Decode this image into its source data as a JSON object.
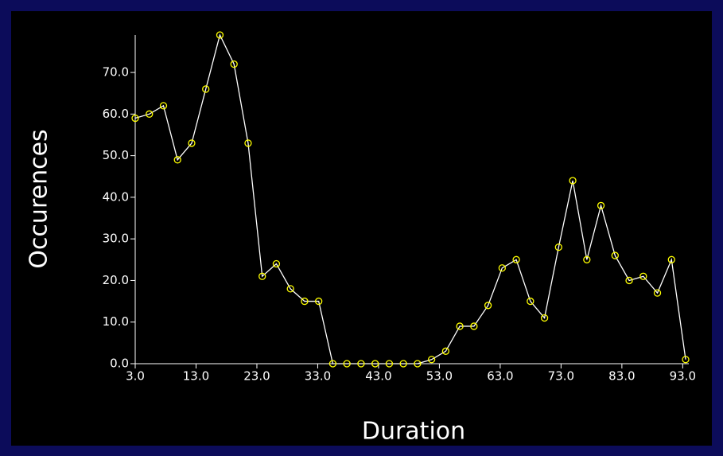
{
  "chart_data": {
    "type": "line",
    "x_label": "Duration",
    "y_label": "Occurences",
    "x": [
      3.0,
      5.32,
      7.64,
      9.96,
      12.28,
      14.6,
      16.92,
      19.24,
      21.56,
      23.88,
      26.2,
      28.52,
      30.84,
      33.16,
      35.48,
      37.8,
      40.12,
      42.44,
      44.76,
      47.08,
      49.4,
      51.72,
      54.04,
      56.36,
      58.68,
      61.0,
      63.32,
      65.64,
      67.96,
      70.28,
      72.6,
      74.92,
      77.24,
      79.56,
      81.88,
      84.2,
      86.52,
      88.84,
      91.16,
      93.48
    ],
    "series": [
      {
        "name": "Occurences",
        "color": "#ffffff",
        "marker_color": "#ffff00",
        "values": [
          59,
          60,
          62,
          49,
          53,
          66,
          79,
          72,
          53,
          21,
          24,
          18,
          15,
          15,
          0,
          0,
          0,
          0,
          0,
          0,
          0,
          1,
          3,
          9,
          9,
          14,
          23,
          25,
          15,
          11,
          28,
          44,
          25,
          38,
          26,
          20,
          21,
          17,
          25,
          1
        ]
      }
    ],
    "xlim": [
      3,
      94
    ],
    "ylim": [
      0,
      79
    ],
    "xticks": [
      {
        "value": 3,
        "label": "3.0"
      },
      {
        "value": 13,
        "label": "13.0"
      },
      {
        "value": 23,
        "label": "23.0"
      },
      {
        "value": 33,
        "label": "33.0"
      },
      {
        "value": 43,
        "label": "43.0"
      },
      {
        "value": 53,
        "label": "53.0"
      },
      {
        "value": 63,
        "label": "63.0"
      },
      {
        "value": 73,
        "label": "73.0"
      },
      {
        "value": 83,
        "label": "83.0"
      },
      {
        "value": 93,
        "label": "93.0"
      }
    ],
    "yticks": [
      {
        "value": 0,
        "label": "0.0"
      },
      {
        "value": 10,
        "label": "10.0"
      },
      {
        "value": 20,
        "label": "20.0"
      },
      {
        "value": 30,
        "label": "30.0"
      },
      {
        "value": 40,
        "label": "40.0"
      },
      {
        "value": 50,
        "label": "50.0"
      },
      {
        "value": 60,
        "label": "60.0"
      },
      {
        "value": 70,
        "label": "70.0"
      }
    ]
  }
}
